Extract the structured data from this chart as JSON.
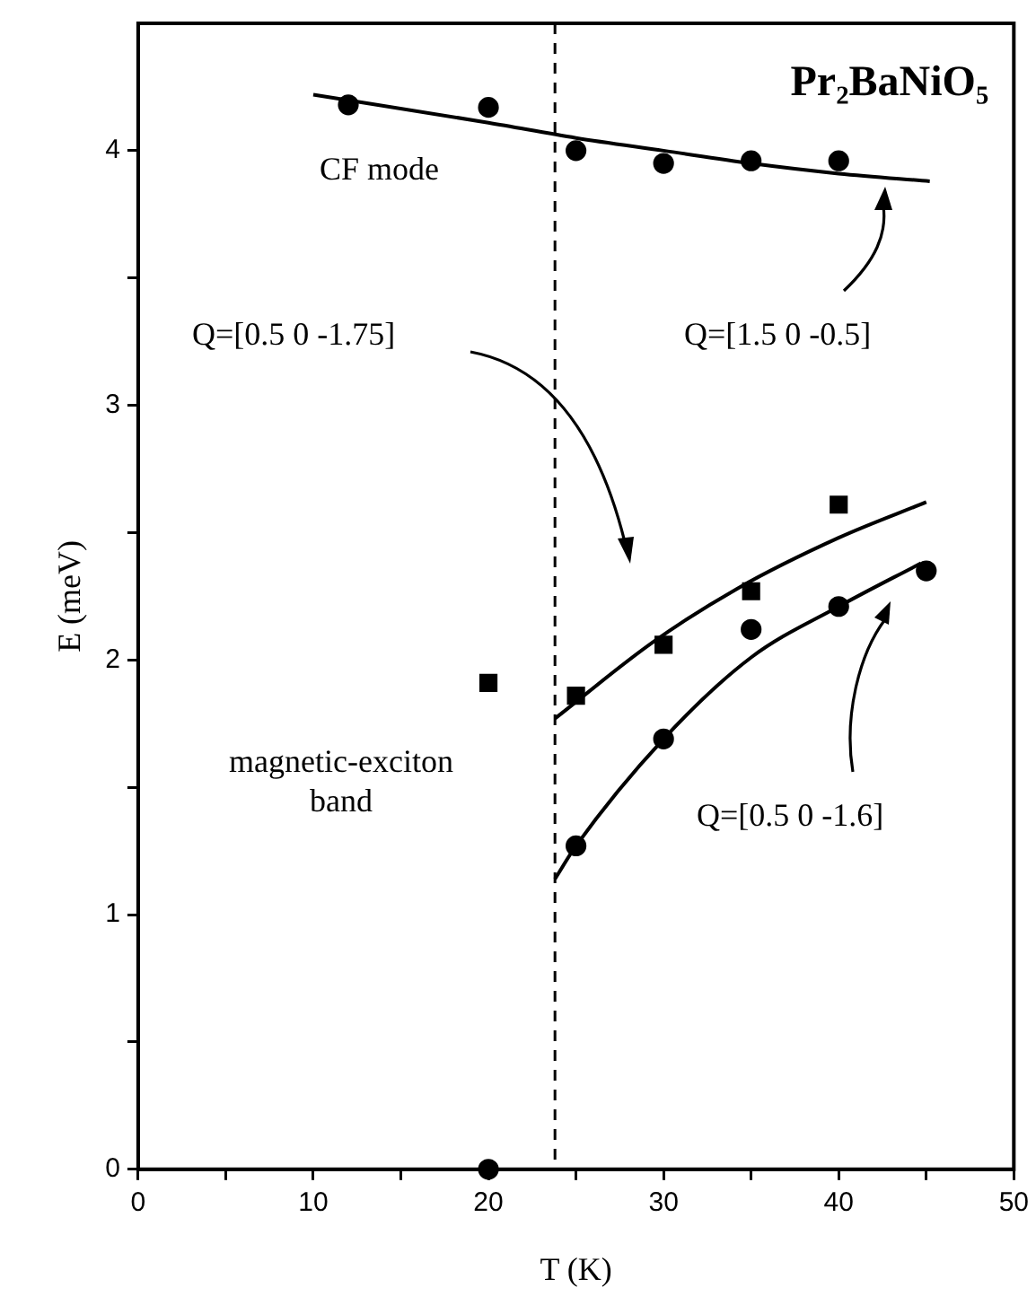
{
  "chart_data": {
    "type": "scatter",
    "title": "Pr₂BaNiO₅",
    "xlabel": "T (K)",
    "ylabel": "E (meV)",
    "xlim": [
      0,
      50
    ],
    "ylim": [
      0,
      4.5
    ],
    "xticks": [
      0,
      {
        "value": 5,
        "label": null
      },
      10,
      {
        "value": 15,
        "label": null
      },
      20,
      {
        "value": 25,
        "label": null
      },
      30,
      {
        "value": 35,
        "label": null
      },
      40,
      {
        "value": 45,
        "label": null
      },
      50
    ],
    "yticks": [
      0,
      {
        "value": 0.5,
        "label": null
      },
      1,
      {
        "value": 1.5,
        "label": null
      },
      2,
      {
        "value": 2.5,
        "label": null
      },
      3,
      {
        "value": 3.5,
        "label": null
      },
      4
    ],
    "grid": false,
    "legend": false,
    "series": [
      {
        "color": "#000000",
        "marker": "circle",
        "x": [
          12,
          20,
          25,
          30,
          35,
          40
        ],
        "values": [
          4.18,
          4.17,
          4.0,
          3.95,
          3.96,
          3.96
        ]
      },
      {
        "color": "#000000",
        "marker": "square",
        "x": [
          20,
          25,
          30,
          35,
          40
        ],
        "values": [
          1.91,
          1.86,
          2.06,
          2.27,
          2.61
        ]
      },
      {
        "color": "#000000",
        "marker": "circle",
        "x": [
          20,
          25,
          30,
          35,
          40,
          45
        ],
        "values": [
          0,
          1.27,
          1.69,
          2.12,
          2.21,
          2.35
        ]
      },
      {
        "type": "line",
        "color": "#000000",
        "marker": "none",
        "x": [
          10,
          20,
          25,
          30,
          35,
          40,
          45.2
        ],
        "values": [
          4.22,
          4.11,
          4.05,
          4.0,
          3.95,
          3.91,
          3.88
        ]
      },
      {
        "type": "line",
        "color": "#000000",
        "marker": "none",
        "x": [
          23.8,
          29.4,
          34.2,
          40,
          45
        ],
        "values": [
          1.77,
          2.07,
          2.28,
          2.48,
          2.62
        ]
      },
      {
        "type": "line",
        "color": "#000000",
        "marker": "none",
        "x": [
          23.8,
          25,
          30,
          35,
          40,
          44.7
        ],
        "values": [
          1.14,
          1.27,
          1.69,
          2.01,
          2.21,
          2.38
        ]
      }
    ],
    "ref_lines": [
      {
        "axis": "x",
        "value": 23.8,
        "line_style": "dashed",
        "color": "#000000"
      }
    ],
    "annotations": [
      "CF mode",
      "Q=[1.5 0 -0.5]",
      "Q=[0.5 0 -1.75]",
      "magnetic-exciton band",
      "Q=[0.5 0 -1.6]"
    ]
  }
}
